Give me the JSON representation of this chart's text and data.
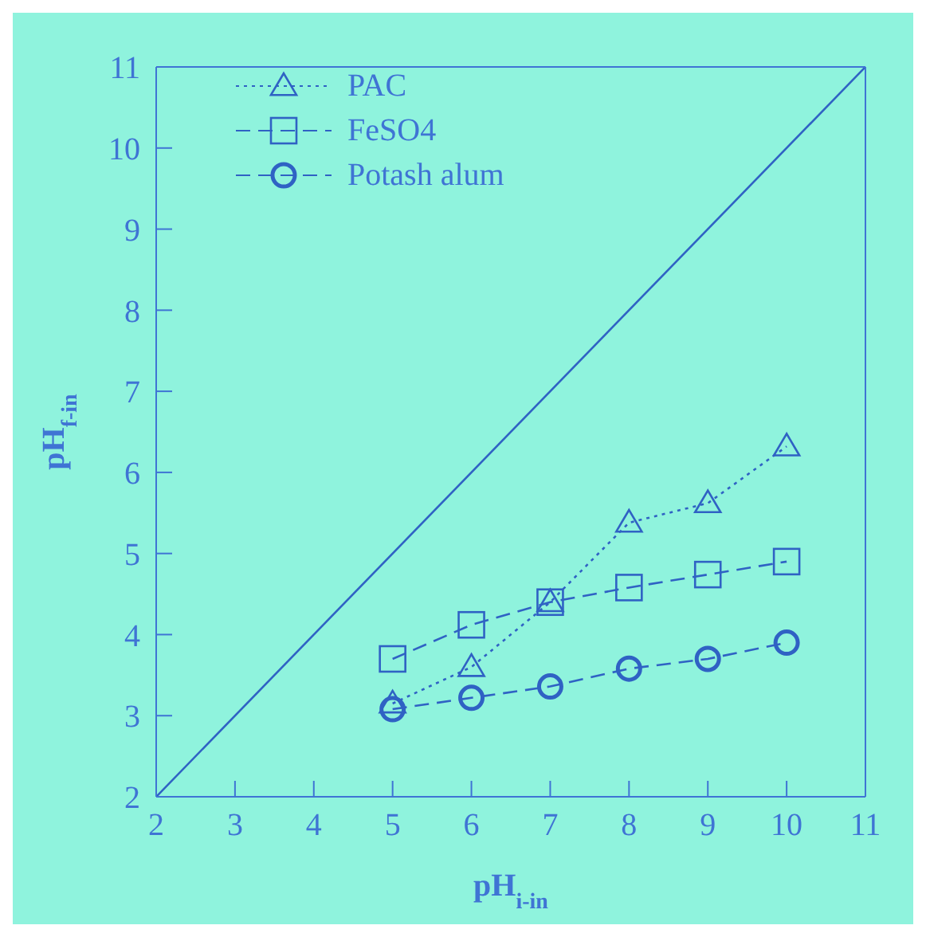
{
  "chart_data": {
    "type": "line",
    "xlabel": "pH$_{i-in}$",
    "ylabel": "pH$_{f-in}$",
    "xlim": [
      2,
      11
    ],
    "ylim": [
      2,
      11
    ],
    "xticks": [
      2,
      3,
      4,
      5,
      6,
      7,
      8,
      9,
      10,
      11
    ],
    "yticks": [
      2,
      3,
      4,
      5,
      6,
      7,
      8,
      9,
      10,
      11
    ],
    "x": [
      5,
      6,
      7,
      8,
      9,
      10
    ],
    "legend": "top left",
    "series": [
      {
        "name": "PAC",
        "color": "#2f62c4",
        "values": [
          3.15,
          3.6,
          4.4,
          5.38,
          5.62,
          6.32
        ],
        "marker": "triangle",
        "line_style": "dotted"
      },
      {
        "name": "FeSO4",
        "color": "#2f62c4",
        "values": [
          3.7,
          4.12,
          4.4,
          4.58,
          4.74,
          4.9
        ],
        "marker": "square",
        "line_style": "dashed"
      },
      {
        "name": "Potash alum",
        "color": "#2f62c4",
        "values": [
          3.08,
          3.22,
          3.36,
          3.58,
          3.7,
          3.9
        ],
        "marker": "circle",
        "line_style": "dashed"
      },
      {
        "color": "#2f62c4",
        "x": [
          2,
          11
        ],
        "values": [
          2,
          11
        ],
        "marker": "none",
        "line_style": "solid"
      }
    ]
  }
}
